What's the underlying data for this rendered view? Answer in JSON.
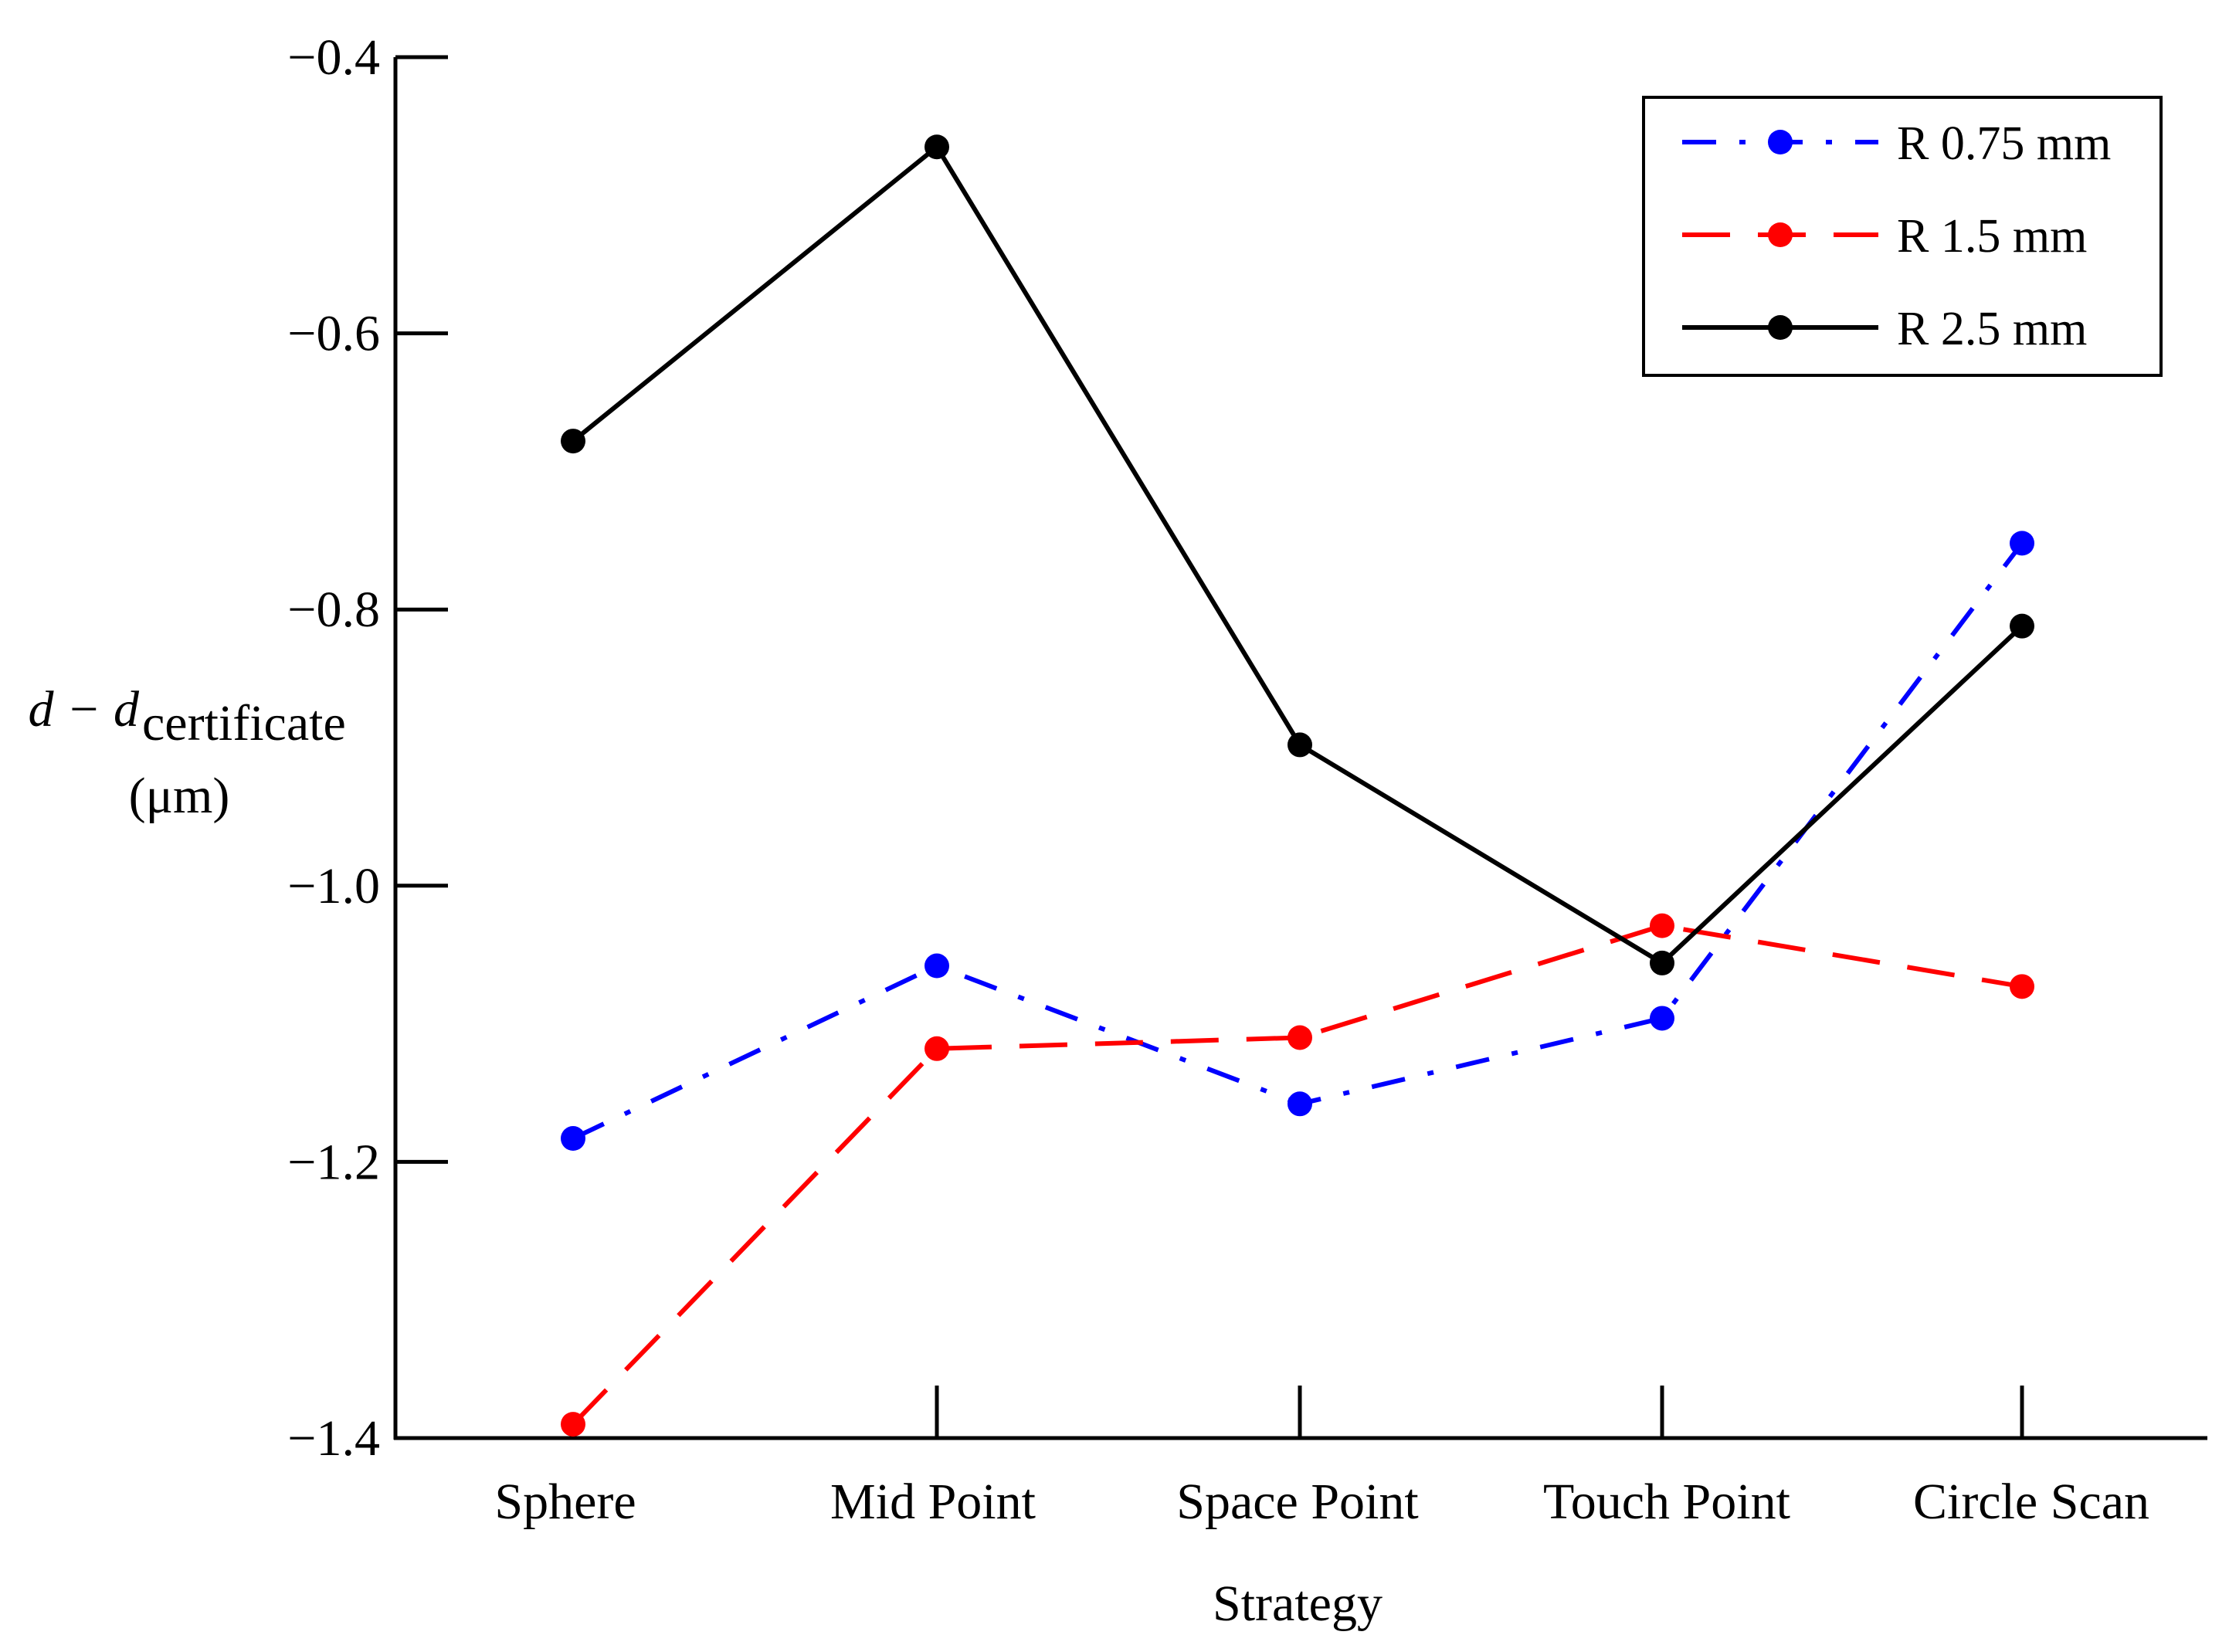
{
  "chart_data": {
    "type": "line",
    "title": "",
    "xlabel": "Strategy",
    "ylabel": {
      "main": "d − d",
      "subscript": "certificate",
      "unit": "(μm)"
    },
    "categories": [
      "Sphere",
      "Mid Point",
      "Space Point",
      "Touch Point",
      "Circle Scan"
    ],
    "ylim": [
      -1.4,
      -0.4
    ],
    "yticks": [
      -0.4,
      -0.6,
      -0.8,
      -1.0,
      -1.2,
      -1.4
    ],
    "ytick_labels": [
      "−0.4",
      "−0.6",
      "−0.8",
      "−1.0",
      "−1.2",
      "−1.4"
    ],
    "grid": false,
    "legend_position": "top-right",
    "series": [
      {
        "name": "R 0.75 mm",
        "color": "#0000ff",
        "line_style": "dash-dot",
        "values": [
          -1.183,
          -1.058,
          -1.158,
          -1.096,
          -0.752
        ]
      },
      {
        "name": "R 1.5 mm",
        "color": "#ff0000",
        "line_style": "long-dash",
        "values": [
          -1.39,
          -1.118,
          -1.11,
          -1.029,
          -1.073
        ]
      },
      {
        "name": "R 2.5 mm",
        "color": "#000000",
        "line_style": "solid",
        "values": [
          -0.678,
          -0.465,
          -0.898,
          -1.056,
          -0.812
        ]
      }
    ]
  }
}
